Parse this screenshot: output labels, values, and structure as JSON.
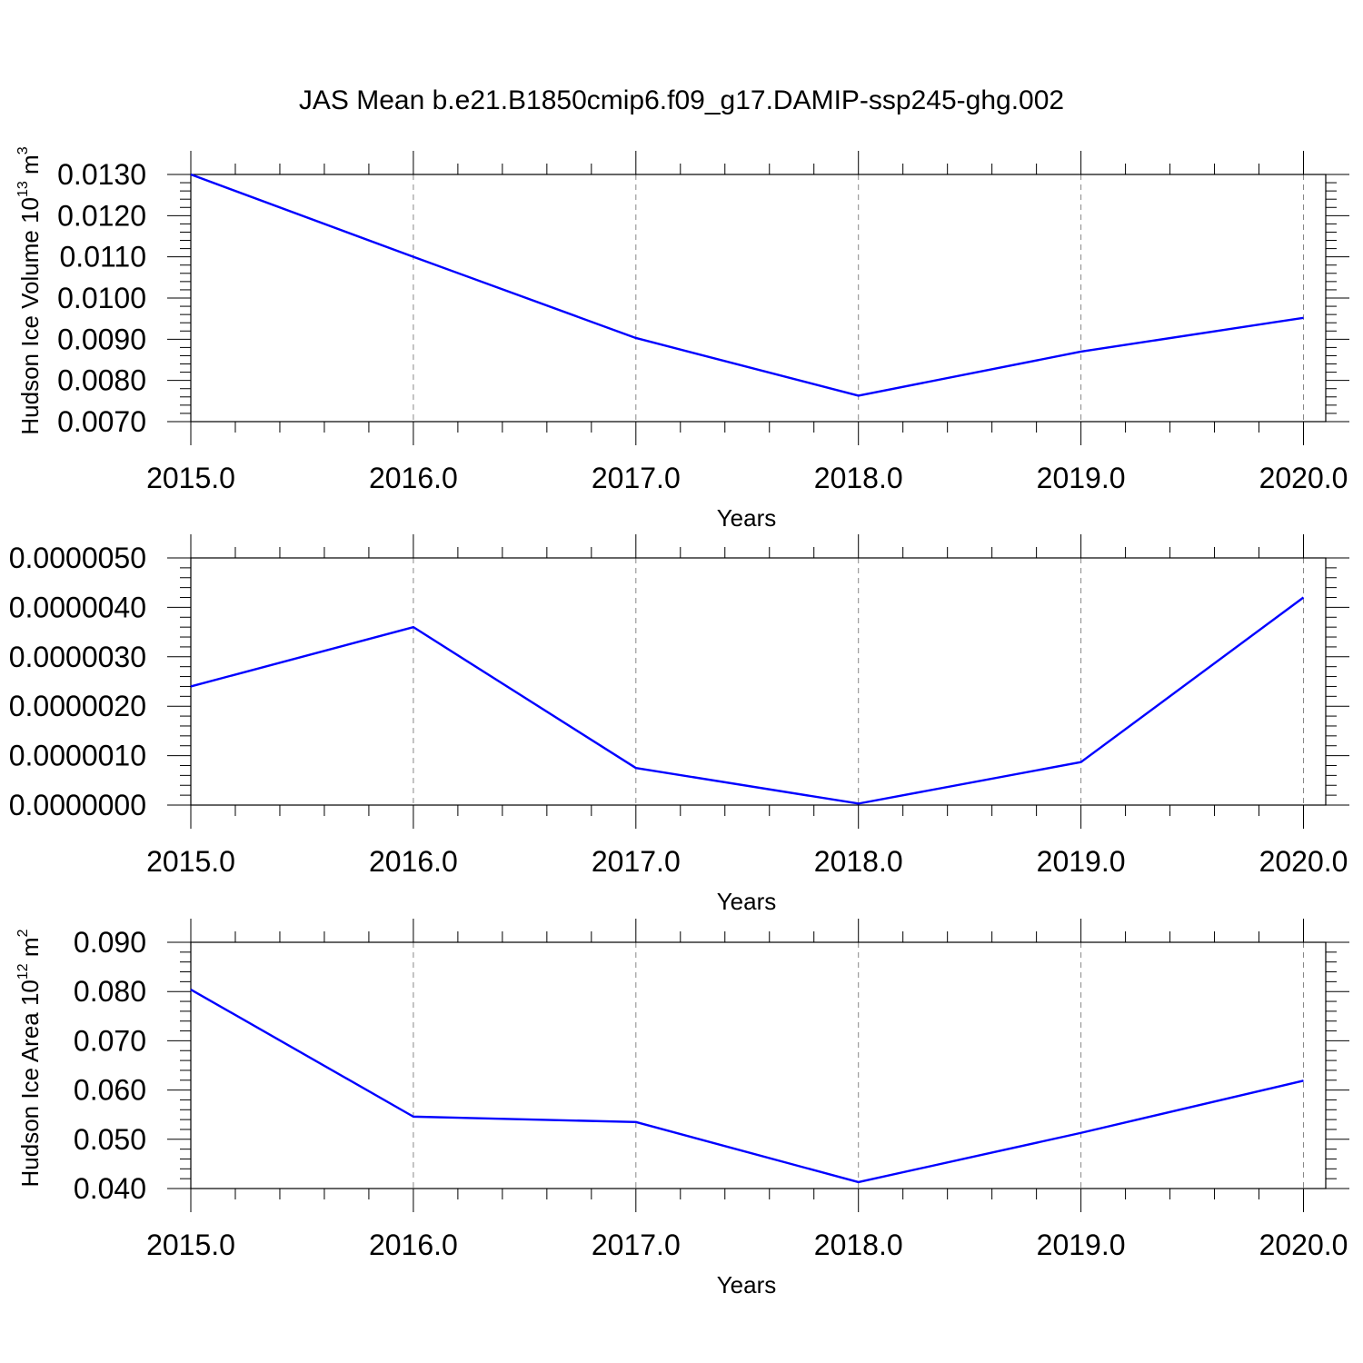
{
  "title": "JAS Mean b.e21.B1850cmip6.f09_g17.DAMIP-ssp245-ghg.002",
  "colors": {
    "line": "#0000ff",
    "frame": "#000000",
    "grid": "#888888"
  },
  "chart_data": [
    {
      "type": "line",
      "xlabel": "Years",
      "ylabel": "Hudson Ice Volume 10",
      "ylabel_sup": "13",
      "ylabel_unit": " m",
      "ylabel_unit_sup": "3",
      "x": [
        2015,
        2016,
        2017,
        2018,
        2019,
        2020
      ],
      "xlim": [
        2015,
        2020.1
      ],
      "xticks": [
        "2015.0",
        "2016.0",
        "2017.0",
        "2018.0",
        "2019.0",
        "2020.0"
      ],
      "series": [
        {
          "values": [
            0.013,
            0.011,
            0.00903,
            0.00763,
            0.0087,
            0.00952
          ]
        }
      ],
      "ylim": [
        0.007,
        0.013
      ],
      "yticks": [
        "0.0070",
        "0.0080",
        "0.0090",
        "0.0100",
        "0.0110",
        "0.0120",
        "0.0130"
      ],
      "grid": "x-dashed"
    },
    {
      "type": "line",
      "xlabel": "Years",
      "ylabel": "",
      "x": [
        2015,
        2016,
        2017,
        2018,
        2019,
        2020
      ],
      "xlim": [
        2015,
        2020.1
      ],
      "xticks": [
        "2015.0",
        "2016.0",
        "2017.0",
        "2018.0",
        "2019.0",
        "2020.0"
      ],
      "series": [
        {
          "values": [
            2.4e-06,
            3.6e-06,
            7.5e-07,
            3e-08,
            8.7e-07,
            4.2e-06
          ]
        }
      ],
      "ylim": [
        0.0,
        5e-06
      ],
      "yticks": [
        "0.0000000",
        "0.0000010",
        "0.0000020",
        "0.0000030",
        "0.0000040",
        "0.0000050"
      ],
      "grid": "x-dashed"
    },
    {
      "type": "line",
      "xlabel": "Years",
      "ylabel": "Hudson Ice Area 10",
      "ylabel_sup": "12",
      "ylabel_unit": " m",
      "ylabel_unit_sup": "2",
      "x": [
        2015,
        2016,
        2017,
        2018,
        2019,
        2020
      ],
      "xlim": [
        2015,
        2020.1
      ],
      "xticks": [
        "2015.0",
        "2016.0",
        "2017.0",
        "2018.0",
        "2019.0",
        "2020.0"
      ],
      "series": [
        {
          "values": [
            0.0804,
            0.0546,
            0.0535,
            0.0413,
            0.0513,
            0.0619
          ]
        }
      ],
      "ylim": [
        0.04,
        0.09
      ],
      "yticks": [
        "0.040",
        "0.050",
        "0.060",
        "0.070",
        "0.080",
        "0.090"
      ],
      "grid": "x-dashed"
    }
  ]
}
